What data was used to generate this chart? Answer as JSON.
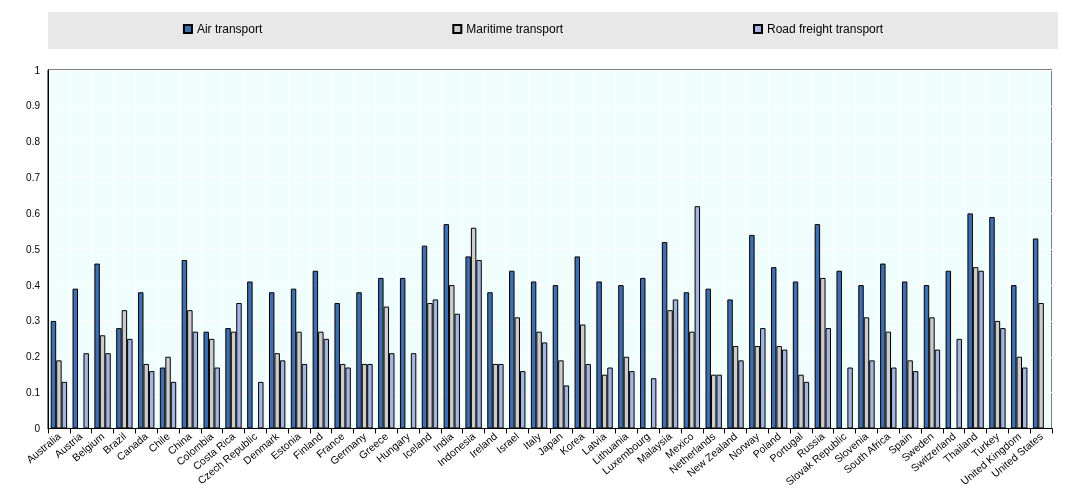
{
  "chart_data": {
    "type": "bar",
    "categories": [
      "Australia",
      "Austria",
      "Belgium",
      "Brazil",
      "Canada",
      "Chile",
      "China",
      "Colombia",
      "Costa Rica",
      "Czech Republic",
      "Denmark",
      "Estonia",
      "Finland",
      "France",
      "Germany",
      "Greece",
      "Hungary",
      "Iceland",
      "India",
      "Indonesia",
      "Ireland",
      "Israel",
      "Italy",
      "Japan",
      "Korea",
      "Latvia",
      "Lithuania",
      "Luxembourg",
      "Malaysia",
      "Mexico",
      "Netherlands",
      "New Zealand",
      "Norway",
      "Poland",
      "Portugal",
      "Russia",
      "Slovak Republic",
      "Slovenia",
      "South Africa",
      "Spain",
      "Sweden",
      "Switzerland",
      "Thailand",
      "Turkey",
      "United Kingdom",
      "United States"
    ],
    "series": [
      {
        "name": "Air transport",
        "color": "#3f6fb0",
        "values": [
          0.3,
          0.39,
          0.46,
          0.28,
          0.38,
          0.17,
          0.47,
          0.27,
          0.28,
          0.41,
          0.38,
          0.39,
          0.44,
          0.35,
          0.38,
          0.42,
          0.42,
          0.51,
          0.57,
          0.48,
          0.38,
          0.44,
          0.41,
          0.4,
          0.48,
          0.41,
          0.4,
          0.42,
          0.52,
          0.38,
          0.39,
          0.36,
          0.54,
          0.45,
          0.41,
          0.57,
          0.44,
          0.4,
          0.46,
          0.41,
          0.4,
          0.44,
          0.6,
          0.59,
          0.4,
          0.53
        ]
      },
      {
        "name": "Maritime transport",
        "color": "#cccccc",
        "values": [
          0.19,
          null,
          0.26,
          0.33,
          0.18,
          0.2,
          0.33,
          0.25,
          0.27,
          null,
          0.21,
          0.27,
          0.27,
          0.18,
          0.18,
          0.34,
          null,
          0.35,
          0.4,
          0.56,
          0.18,
          0.31,
          0.27,
          0.19,
          0.29,
          0.15,
          0.2,
          null,
          0.33,
          0.27,
          0.15,
          0.23,
          0.23,
          0.23,
          0.15,
          0.42,
          null,
          0.31,
          0.27,
          0.19,
          0.31,
          null,
          0.45,
          0.3,
          0.2,
          0.35
        ]
      },
      {
        "name": "Road freight transport",
        "color": "#a6b4e0",
        "values": [
          0.13,
          0.21,
          0.21,
          0.25,
          0.16,
          0.13,
          0.27,
          0.17,
          0.35,
          0.13,
          0.19,
          0.18,
          0.25,
          0.17,
          0.18,
          0.21,
          0.21,
          0.36,
          0.32,
          0.47,
          0.18,
          0.16,
          0.24,
          0.12,
          0.18,
          0.17,
          0.16,
          0.14,
          0.36,
          0.62,
          0.15,
          0.19,
          0.28,
          0.22,
          0.13,
          0.28,
          0.17,
          0.19,
          0.17,
          0.16,
          0.22,
          0.25,
          0.44,
          0.28,
          0.17,
          null
        ]
      }
    ],
    "ylim": [
      0,
      1
    ],
    "yticks": [
      0,
      0.1,
      0.2,
      0.3,
      0.4,
      0.5,
      0.6,
      0.7,
      0.8,
      0.9,
      1
    ],
    "grid": true,
    "legend": "top"
  }
}
